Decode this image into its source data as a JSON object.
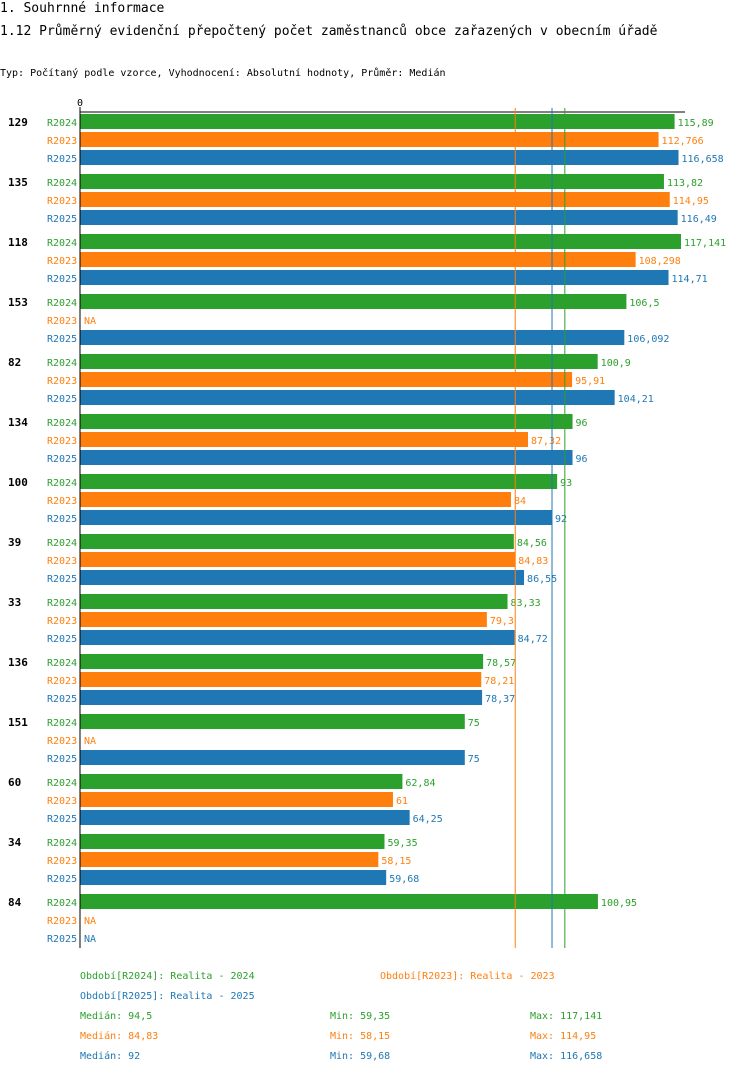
{
  "header": {
    "title": "1. Souhrnné informace",
    "subtitle": "1.12 Průměrný evidenční přepočtený počet zaměstnanců obce zařazených v obecním úřadě",
    "params": "Typ: Počítaný podle vzorce, Vyhodnocení: Absolutní hodnoty, Průměr: Medián"
  },
  "colors": {
    "R2024": "#2ca02c",
    "R2023": "#ff7f0e",
    "R2025": "#1f77b4"
  },
  "chart_data": {
    "type": "bar",
    "orientation": "horizontal",
    "axis_zero_label": "0",
    "xlim": [
      0,
      117.141
    ],
    "categories": [
      "129",
      "135",
      "118",
      "153",
      "82",
      "134",
      "100",
      "39",
      "33",
      "136",
      "151",
      "60",
      "34",
      "84"
    ],
    "series": [
      {
        "name": "R2024",
        "values": [
          115.89,
          113.82,
          117.141,
          106.5,
          100.9,
          96,
          93,
          84.56,
          83.33,
          78.57,
          75,
          62.84,
          59.35,
          100.95
        ],
        "labels": [
          "115,89",
          "113,82",
          "117,141",
          "106,5",
          "100,9",
          "96",
          "93",
          "84,56",
          "83,33",
          "78,57",
          "75",
          "62,84",
          "59,35",
          "100,95"
        ]
      },
      {
        "name": "R2023",
        "values": [
          112.766,
          114.95,
          108.298,
          null,
          95.91,
          87.32,
          84,
          84.83,
          79.3,
          78.21,
          null,
          61,
          58.15,
          null
        ],
        "labels": [
          "112,766",
          "114,95",
          "108,298",
          "NA",
          "95,91",
          "87,32",
          "84",
          "84,83",
          "79,3",
          "78,21",
          "NA",
          "61",
          "58,15",
          "NA"
        ]
      },
      {
        "name": "R2025",
        "values": [
          116.658,
          116.49,
          114.71,
          106.092,
          104.21,
          96,
          92,
          86.55,
          84.72,
          78.37,
          75,
          64.25,
          59.68,
          null
        ],
        "labels": [
          "116,658",
          "116,49",
          "114,71",
          "106,092",
          "104,21",
          "96",
          "92",
          "86,55",
          "84,72",
          "78,37",
          "75",
          "64,25",
          "59,68",
          "NA"
        ]
      }
    ],
    "medians": {
      "R2024": 94.5,
      "R2023": 84.83,
      "R2025": 92
    }
  },
  "legend": {
    "items": [
      {
        "key": "R2024",
        "text": "Období[R2024]: Realita - 2024"
      },
      {
        "key": "R2023",
        "text": "Období[R2023]: Realita - 2023"
      },
      {
        "key": "R2025",
        "text": "Období[R2025]: Realita - 2025"
      }
    ]
  },
  "stats": [
    {
      "key": "R2024",
      "median": "Medián: 94,5",
      "min": "Min: 59,35",
      "max": "Max: 117,141"
    },
    {
      "key": "R2023",
      "median": "Medián: 84,83",
      "min": "Min: 58,15",
      "max": "Max: 114,95"
    },
    {
      "key": "R2025",
      "median": "Medián: 92",
      "min": "Min: 59,68",
      "max": "Max: 116,658"
    }
  ]
}
